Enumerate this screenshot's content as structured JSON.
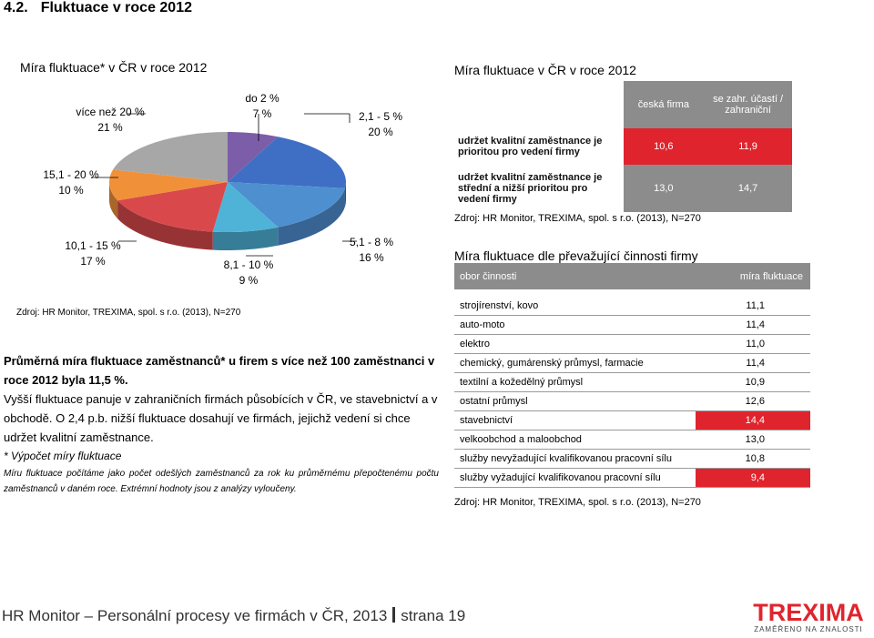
{
  "section": {
    "number": "4.2.",
    "title": "Fluktuace v roce 2012"
  },
  "pie_chart": {
    "title": "Míra fluktuace* v ČR v roce 2012",
    "source": "Zdroj: HR Monitor, TREXIMA, spol. s r.o. (2013), N=270",
    "labels": [
      {
        "range": "do 2 %",
        "value": "7 %"
      },
      {
        "range": "2,1 - 5 %",
        "value": "20 %"
      },
      {
        "range": "5,1 - 8 %",
        "value": "16 %"
      },
      {
        "range": "8,1 - 10 %",
        "value": "9 %"
      },
      {
        "range": "10,1 - 15 %",
        "value": "17 %"
      },
      {
        "range": "15,1 - 20 %",
        "value": "10 %"
      },
      {
        "range": "více než 20 %",
        "value": "21 %"
      }
    ]
  },
  "chart_data": {
    "type": "pie",
    "title": "Míra fluktuace* v ČR v roce 2012",
    "categories": [
      "do 2 %",
      "2,1 - 5 %",
      "5,1 - 8 %",
      "8,1 - 10 %",
      "10,1 - 15 %",
      "15,1 - 20 %",
      "více než 20 %"
    ],
    "values": [
      7,
      20,
      16,
      9,
      17,
      10,
      21
    ],
    "colors": [
      "#7b5ea7",
      "#3f6fc4",
      "#4e8fd0",
      "#4fb3d8",
      "#d9494b",
      "#f0913a",
      "#a7a7a7"
    ]
  },
  "table1": {
    "title": "Míra fluktuace v ČR v roce 2012",
    "col_headers": [
      "česká firma",
      "se zahr. účastí / zahraniční"
    ],
    "rows": [
      {
        "label": "udržet kvalitní zaměstnance je prioritou pro vedení firmy",
        "cz": "10,6",
        "foreign": "11,9"
      },
      {
        "label": "udržet kvalitní zaměstnance je střední a nižší prioritou pro vedení firmy",
        "cz": "13,0",
        "foreign": "14,7"
      }
    ],
    "source": "Zdroj: HR Monitor, TREXIMA, spol. s r.o. (2013), N=270"
  },
  "table2": {
    "title": "Míra fluktuace dle převažující činnosti firmy",
    "col_headers": [
      "obor činnosti",
      "míra fluktuace"
    ],
    "rows": [
      {
        "sector": "strojírenství, kovo",
        "value": "11,1"
      },
      {
        "sector": "auto-moto",
        "value": "11,4"
      },
      {
        "sector": "elektro",
        "value": "11,0"
      },
      {
        "sector": "chemický, gumárenský průmysl, farmacie",
        "value": "11,4"
      },
      {
        "sector": "textilní a kožedělný průmysl",
        "value": "10,9"
      },
      {
        "sector": "ostatní průmysl",
        "value": "12,6"
      },
      {
        "sector": "stavebnictví",
        "value": "14,4"
      },
      {
        "sector": "velkoobchod a maloobchod",
        "value": "13,0"
      },
      {
        "sector": "služby nevyžadující kvalifikovanou pracovní sílu",
        "value": "10,8"
      },
      {
        "sector": "služby vyžadující kvalifikovanou pracovní sílu",
        "value": "9,4"
      }
    ],
    "source": "Zdroj: HR Monitor, TREXIMA, spol. s r.o. (2013), N=270"
  },
  "body": {
    "bold": "Průměrná míra fluktuace zaměstnanců* u firem s více než 100 zaměstnanci v roce 2012 byla 11,5 %.",
    "para": "Vyšší fluktuace panuje v zahraničních firmách působících v ČR, ve stavebnictví a v obchodě. O 2,4 p.b. nižší fluktuace dosahují ve firmách, jejichž vedení si chce udržet kvalitní zaměstnance.",
    "note_title": "* Výpočet míry fluktuace",
    "note": "Míru fluktuace počítáme jako počet odešlých zaměstnanců za rok ku průměrnému přepočtenému počtu zaměstnanců v daném roce. Extrémní hodnoty jsou z analýzy vyloučeny."
  },
  "footer": {
    "left": "HR Monitor – Personální procesy ve firmách v ČR, 2013",
    "right": "strana 19"
  },
  "logo": {
    "name": "TREXIMA",
    "tagline": "ZAMĚŘENO NA ZNALOSTI"
  }
}
